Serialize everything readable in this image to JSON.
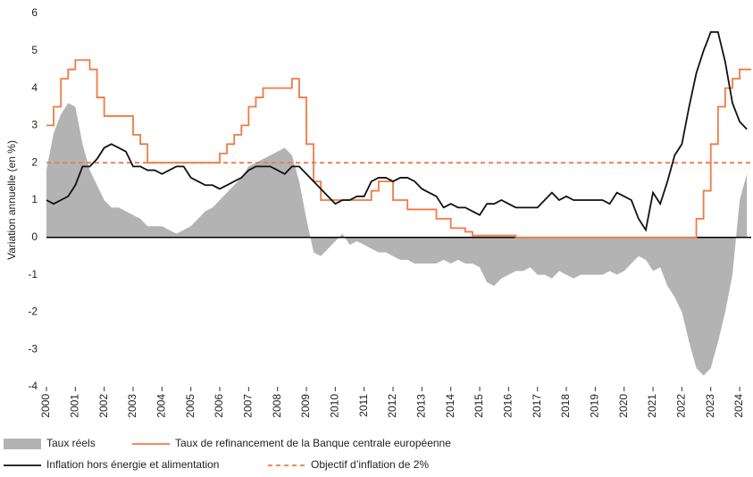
{
  "chart_data": {
    "type": "line",
    "y_label": "Variation annuelle (en %)",
    "x": [
      2000,
      2000.25,
      2000.5,
      2000.75,
      2001,
      2001.25,
      2001.5,
      2001.75,
      2002,
      2002.25,
      2002.5,
      2002.75,
      2003,
      2003.25,
      2003.5,
      2003.75,
      2004,
      2004.25,
      2004.5,
      2004.75,
      2005,
      2005.25,
      2005.5,
      2005.75,
      2006,
      2006.25,
      2006.5,
      2006.75,
      2007,
      2007.25,
      2007.5,
      2007.75,
      2008,
      2008.25,
      2008.5,
      2008.75,
      2009,
      2009.25,
      2009.5,
      2009.75,
      2010,
      2010.25,
      2010.5,
      2010.75,
      2011,
      2011.25,
      2011.5,
      2011.75,
      2012,
      2012.25,
      2012.5,
      2012.75,
      2013,
      2013.25,
      2013.5,
      2013.75,
      2014,
      2014.25,
      2014.5,
      2014.75,
      2015,
      2015.25,
      2015.5,
      2015.75,
      2016,
      2016.25,
      2016.5,
      2016.75,
      2017,
      2017.25,
      2017.5,
      2017.75,
      2018,
      2018.25,
      2018.5,
      2018.75,
      2019,
      2019.25,
      2019.5,
      2019.75,
      2020,
      2020.25,
      2020.5,
      2020.75,
      2021,
      2021.25,
      2021.5,
      2021.75,
      2022,
      2022.25,
      2022.5,
      2022.75,
      2023,
      2023.25,
      2023.5,
      2023.75,
      2024,
      2024.25
    ],
    "series": [
      {
        "name": "Taux réels",
        "kind": "area",
        "color": "#b3b3b3",
        "values": [
          1.8,
          2.8,
          3.3,
          3.6,
          3.5,
          2.5,
          1.8,
          1.4,
          1.0,
          0.8,
          0.8,
          0.7,
          0.6,
          0.5,
          0.3,
          0.3,
          0.3,
          0.2,
          0.1,
          0.2,
          0.3,
          0.5,
          0.7,
          0.8,
          1.0,
          1.2,
          1.4,
          1.6,
          1.9,
          2.0,
          2.1,
          2.2,
          2.3,
          2.4,
          2.2,
          1.5,
          0.5,
          -0.4,
          -0.5,
          -0.3,
          -0.1,
          0.1,
          -0.2,
          -0.1,
          -0.2,
          -0.3,
          -0.4,
          -0.4,
          -0.5,
          -0.6,
          -0.6,
          -0.7,
          -0.7,
          -0.7,
          -0.7,
          -0.6,
          -0.7,
          -0.6,
          -0.7,
          -0.7,
          -0.8,
          -1.2,
          -1.3,
          -1.1,
          -1.0,
          -0.9,
          -0.9,
          -0.8,
          -1.0,
          -1.0,
          -1.1,
          -0.9,
          -1.0,
          -1.1,
          -1.0,
          -1.0,
          -1.0,
          -1.0,
          -0.9,
          -1.0,
          -0.9,
          -0.7,
          -0.5,
          -0.6,
          -0.9,
          -0.8,
          -1.3,
          -1.6,
          -2.0,
          -2.8,
          -3.5,
          -3.7,
          -3.5,
          -2.8,
          -2.0,
          -1.0,
          1.0,
          1.7
        ]
      },
      {
        "name": "Taux de refinancement de la Banque centrale européenne",
        "kind": "step",
        "color": "#f07a45",
        "values": [
          3.0,
          3.5,
          4.25,
          4.5,
          4.75,
          4.75,
          4.5,
          3.75,
          3.25,
          3.25,
          3.25,
          3.25,
          2.75,
          2.5,
          2.0,
          2.0,
          2,
          2,
          2,
          2,
          2,
          2,
          2,
          2,
          2.25,
          2.5,
          2.75,
          3.0,
          3.5,
          3.75,
          4.0,
          4.0,
          4.0,
          4.0,
          4.25,
          3.75,
          2.5,
          1.5,
          1.0,
          1.0,
          1,
          1,
          1,
          1,
          1.0,
          1.25,
          1.5,
          1.5,
          1.0,
          1.0,
          0.75,
          0.75,
          0.75,
          0.75,
          0.5,
          0.5,
          0.25,
          0.25,
          0.15,
          0.05,
          0.05,
          0.05,
          0.05,
          0.05,
          0.05,
          0,
          0,
          0,
          0,
          0,
          0,
          0,
          0,
          0,
          0,
          0,
          0,
          0,
          0,
          0,
          0,
          0,
          0,
          0,
          0,
          0,
          0,
          0,
          0,
          0,
          0.5,
          1.25,
          2.5,
          3.5,
          4.0,
          4.25,
          4.5,
          4.5
        ]
      },
      {
        "name": "Inflation hors énergie et alimentation",
        "kind": "line",
        "color": "#111111",
        "values": [
          1.0,
          0.9,
          1.0,
          1.1,
          1.4,
          1.9,
          1.9,
          2.1,
          2.4,
          2.5,
          2.4,
          2.3,
          1.9,
          1.9,
          1.8,
          1.8,
          1.7,
          1.8,
          1.9,
          1.9,
          1.6,
          1.5,
          1.4,
          1.4,
          1.3,
          1.4,
          1.5,
          1.6,
          1.8,
          1.9,
          1.9,
          1.9,
          1.8,
          1.7,
          1.9,
          1.9,
          1.7,
          1.5,
          1.3,
          1.1,
          0.9,
          1.0,
          1.0,
          1.1,
          1.1,
          1.5,
          1.6,
          1.6,
          1.5,
          1.6,
          1.6,
          1.5,
          1.3,
          1.2,
          1.1,
          0.8,
          0.9,
          0.8,
          0.8,
          0.7,
          0.6,
          0.9,
          0.9,
          1.0,
          0.9,
          0.8,
          0.8,
          0.8,
          0.8,
          1.0,
          1.2,
          1.0,
          1.1,
          1.0,
          1.0,
          1.0,
          1.0,
          1.0,
          0.9,
          1.2,
          1.1,
          1.0,
          0.5,
          0.2,
          1.2,
          0.9,
          1.5,
          2.2,
          2.5,
          3.5,
          4.4,
          5.0,
          5.5,
          5.5,
          4.7,
          3.6,
          3.1,
          2.9
        ]
      },
      {
        "name": "Objectif d’inflation de 2%",
        "kind": "dashed",
        "color": "#f07a45",
        "x": [
          2000,
          2024.4
        ],
        "values": [
          2,
          2
        ]
      }
    ],
    "xlim": [
      2000,
      2024.4
    ],
    "xticks": [
      2000,
      2001,
      2002,
      2003,
      2004,
      2005,
      2006,
      2007,
      2008,
      2009,
      2010,
      2011,
      2012,
      2013,
      2014,
      2015,
      2016,
      2017,
      2018,
      2019,
      2020,
      2021,
      2022,
      2023,
      2024
    ],
    "ylim": [
      -4,
      6
    ],
    "yticks": [
      -4,
      -3,
      -2,
      -1,
      0,
      1,
      2,
      3,
      4,
      5,
      6
    ]
  }
}
